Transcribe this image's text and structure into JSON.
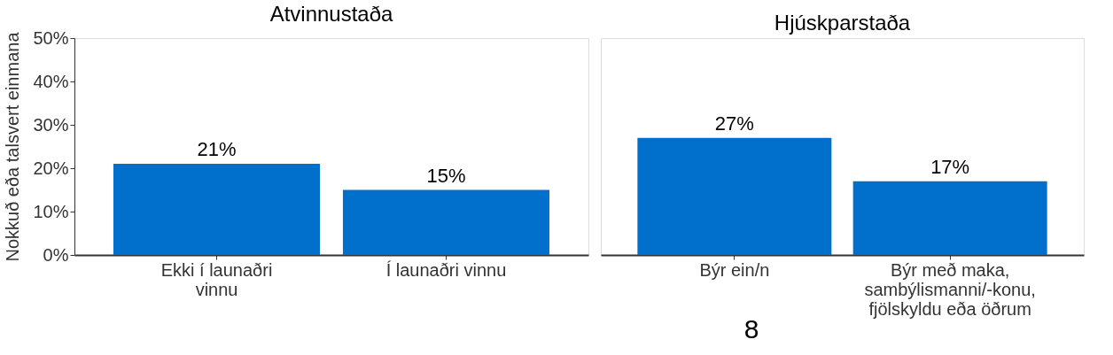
{
  "chart_data": [
    {
      "type": "bar",
      "title": "Atvinnustaða",
      "ylabel": "Nokkuð eða talsvert einmana",
      "categories": [
        "Ekki í launaðri\nvinnu",
        "Í launaðri vinnu"
      ],
      "values": [
        21,
        15
      ],
      "value_labels": [
        "21%",
        "15%"
      ],
      "color": "#0070cc",
      "ylim": [
        0,
        50
      ],
      "yticks": [
        {
          "value": 0,
          "label": "0%"
        },
        {
          "value": 10,
          "label": "10%"
        },
        {
          "value": 20,
          "label": "20%"
        },
        {
          "value": 30,
          "label": "30%"
        },
        {
          "value": 40,
          "label": "40%"
        },
        {
          "value": 50,
          "label": "50%"
        }
      ],
      "grid": false
    },
    {
      "type": "bar",
      "title": "Hjúskparstaða",
      "categories": [
        "Býr ein/n",
        "Býr með maka,\nsambýlismanni/-konu,\nfjölskyldu eða öðrum"
      ],
      "values": [
        27,
        17
      ],
      "value_labels": [
        "27%",
        "17%"
      ],
      "color": "#0070cc",
      "ylim": [
        0,
        50
      ],
      "tick_labels": "x",
      "grid": false,
      "annotations": [
        "8"
      ]
    }
  ]
}
